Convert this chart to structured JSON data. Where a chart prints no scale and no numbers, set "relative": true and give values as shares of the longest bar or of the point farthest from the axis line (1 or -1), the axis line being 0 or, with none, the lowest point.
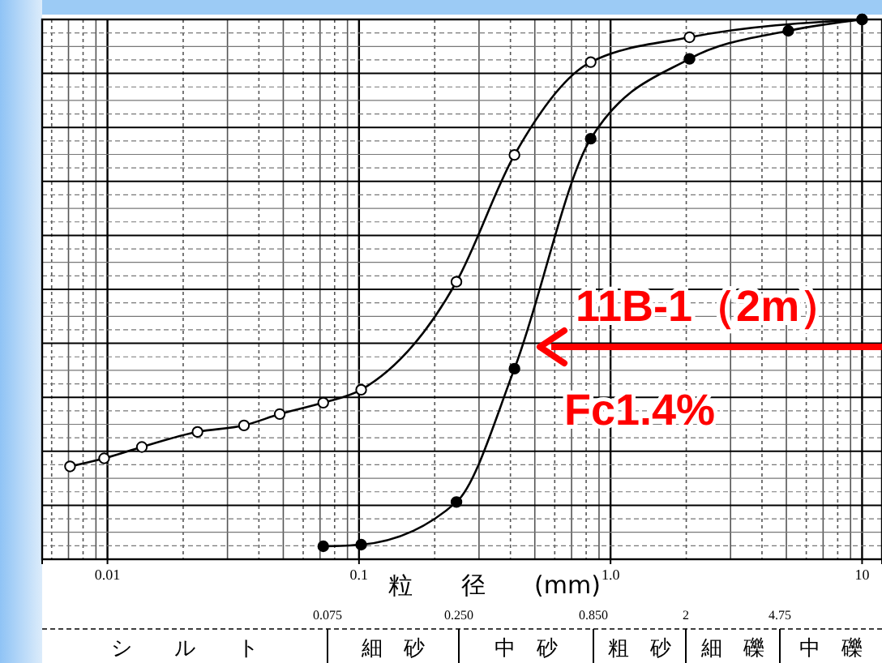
{
  "chart_data": {
    "type": "line",
    "relative": true,
    "log": "x",
    "grid": true,
    "line_style": "solid",
    "xlabel": "粒　　径　　(mm)",
    "xlim": [
      0.0055,
      12
    ],
    "xticks": [
      {
        "value": 0.01,
        "label": "0.01"
      },
      {
        "value": 0.1,
        "label": "0.1"
      },
      {
        "value": 1,
        "label": "1.0"
      },
      10
    ],
    "tick_labels": "x",
    "series": [
      {
        "color": "#000000",
        "marker": "circle-open",
        "x": [
          0.0071,
          0.0097,
          0.0137,
          0.0228,
          0.0349,
          0.0484,
          0.0721,
          0.102,
          0.244,
          0.415,
          0.834,
          2.06,
          10
        ],
        "values": [
          0.172,
          0.187,
          0.208,
          0.236,
          0.248,
          0.269,
          0.29,
          0.314,
          0.514,
          0.749,
          0.921,
          0.967,
          1
        ]
      },
      {
        "color": "#000000",
        "marker": "circle",
        "x": [
          0.0721,
          0.102,
          0.244,
          0.415,
          0.834,
          2.06,
          5.09,
          10
        ],
        "values": [
          0.024,
          0.027,
          0.106,
          0.353,
          0.779,
          0.927,
          0.979,
          1
        ]
      }
    ],
    "annotations": [
      "11B-1（2m）",
      "Fc1.4%",
      "0.075",
      "0.250",
      "0.850",
      "2",
      "4.75",
      "シ　　ル　　ト",
      "細　砂",
      "中　砂",
      "粗　砂",
      "細　礫",
      "中　礫"
    ]
  }
}
